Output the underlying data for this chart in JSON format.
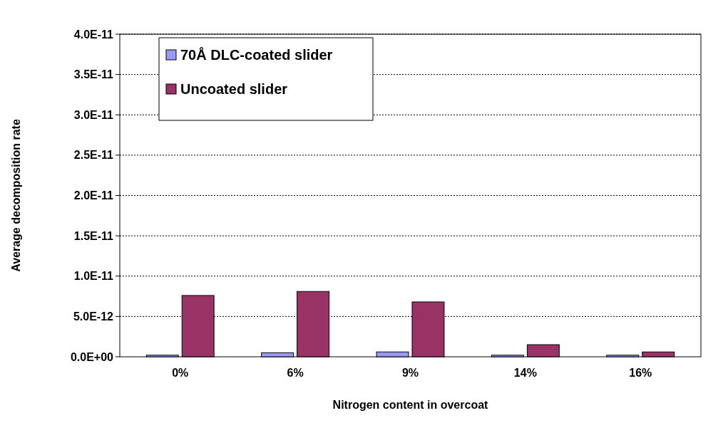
{
  "chart_data": {
    "type": "bar",
    "xlabel": "Nitrogen content in overcoat",
    "ylabel": "Average decomposition rate",
    "categories": [
      "0%",
      "6%",
      "9%",
      "14%",
      "16%"
    ],
    "series": [
      {
        "name": "70Å DLC-coated slider",
        "color": "#9999ff",
        "values": [
          2e-13,
          5e-13,
          6e-13,
          2e-13,
          2e-13
        ]
      },
      {
        "name": "Uncoated slider",
        "color": "#993366",
        "values": [
          7.6e-12,
          8.1e-12,
          6.8e-12,
          1.5e-12,
          6e-13
        ]
      }
    ],
    "ylim": [
      0,
      4e-11
    ],
    "yticks": [
      {
        "value": 0,
        "label": "0.0E+00"
      },
      {
        "value": 5e-12,
        "label": "5.0E-12"
      },
      {
        "value": 1e-11,
        "label": "1.0E-11"
      },
      {
        "value": 1.5e-11,
        "label": "1.5E-11"
      },
      {
        "value": 2e-11,
        "label": "2.0E-11"
      },
      {
        "value": 2.5e-11,
        "label": "2.5E-11"
      },
      {
        "value": 3e-11,
        "label": "3.0E-11"
      },
      {
        "value": 3.5e-11,
        "label": "3.5E-11"
      },
      {
        "value": 4e-11,
        "label": "4.0E-11"
      }
    ],
    "grid": "y",
    "legend": "top left"
  }
}
